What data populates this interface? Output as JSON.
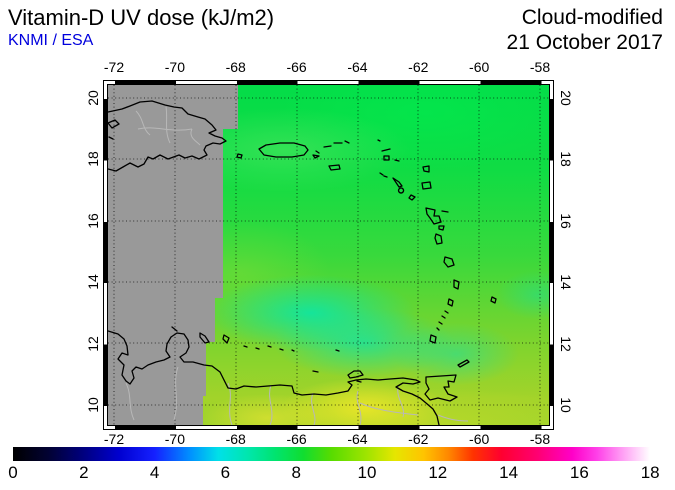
{
  "header": {
    "title": "Vitamin-D UV dose (kJ/m2)",
    "source": "KNMI / ESA",
    "source_color": "#0000dd",
    "mode": "Cloud-modified",
    "date": "21 October 2017"
  },
  "map": {
    "lon_ticks": [
      "-72",
      "-70",
      "-68",
      "-66",
      "-64",
      "-62",
      "-60",
      "-58"
    ],
    "lat_ticks": [
      "20",
      "18",
      "16",
      "14",
      "12",
      "10"
    ],
    "nodata_color": "#999999",
    "coastline_color": "#000000",
    "border_color": "#b8b8b8",
    "gridline_style": "dotted"
  },
  "colorbar": {
    "min": 0,
    "max": 18,
    "tick_labels": [
      "0",
      "2",
      "4",
      "6",
      "8",
      "10",
      "12",
      "14",
      "16",
      "18"
    ],
    "tick_values": [
      0,
      2,
      4,
      6,
      8,
      10,
      12,
      14,
      16,
      18
    ],
    "stops": [
      {
        "v": 0,
        "c": "#000000"
      },
      {
        "v": 1,
        "c": "#020233"
      },
      {
        "v": 2,
        "c": "#000080"
      },
      {
        "v": 3,
        "c": "#0000d0"
      },
      {
        "v": 4,
        "c": "#1520ff"
      },
      {
        "v": 5,
        "c": "#0090ff"
      },
      {
        "v": 5.8,
        "c": "#00e0e8"
      },
      {
        "v": 6.6,
        "c": "#00e6b0"
      },
      {
        "v": 7.4,
        "c": "#00e470"
      },
      {
        "v": 8.2,
        "c": "#10dd30"
      },
      {
        "v": 9,
        "c": "#58dc00"
      },
      {
        "v": 10,
        "c": "#a0e400"
      },
      {
        "v": 10.8,
        "c": "#e6e600"
      },
      {
        "v": 11.6,
        "c": "#ffc400"
      },
      {
        "v": 12.3,
        "c": "#ff8800"
      },
      {
        "v": 13,
        "c": "#ff3300"
      },
      {
        "v": 13.8,
        "c": "#ff0030"
      },
      {
        "v": 14.8,
        "c": "#ff0070"
      },
      {
        "v": 15.8,
        "c": "#ff00c8"
      },
      {
        "v": 16.5,
        "c": "#ff40e8"
      },
      {
        "v": 17.2,
        "c": "#ff9cf4"
      },
      {
        "v": 18,
        "c": "#ffffff"
      }
    ]
  }
}
